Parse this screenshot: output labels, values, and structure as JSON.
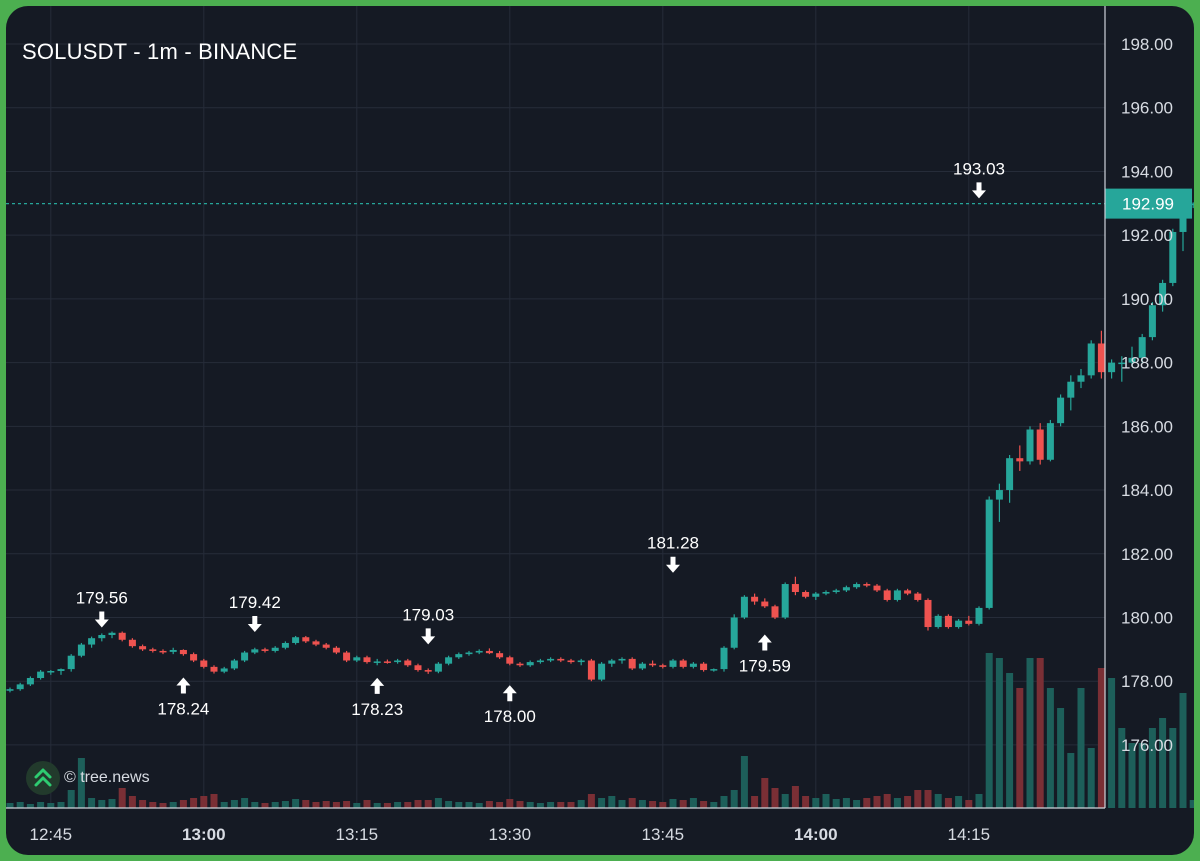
{
  "title": "SOLUSDT - 1m - BINANCE",
  "watermark": "© tree.news",
  "colors": {
    "background": "#151a24",
    "grid": "#262c39",
    "up": "#26a69a",
    "down": "#ef5350",
    "vol_up": "#1d5f5a",
    "vol_down": "#7a2f35",
    "text": "#ffffff",
    "axis_text": "#d7dbe2",
    "price_line": "#26a69a",
    "frame": "#4caf50"
  },
  "chart_data": {
    "type": "candlestick",
    "symbol": "SOLUSDT",
    "interval": "1m",
    "exchange": "BINANCE",
    "start_time": "12:41",
    "ylim": [
      174.0,
      199.0
    ],
    "y_ticks": [
      "198.00",
      "196.00",
      "194.00",
      "192.00",
      "190.00",
      "188.00",
      "186.00",
      "184.00",
      "182.00",
      "180.00",
      "178.00",
      "176.00"
    ],
    "x_ticks": [
      {
        "label": "12:45",
        "bold": false
      },
      {
        "label": "13:00",
        "bold": true
      },
      {
        "label": "13:15",
        "bold": false
      },
      {
        "label": "13:30",
        "bold": false
      },
      {
        "label": "13:45",
        "bold": false
      },
      {
        "label": "14:00",
        "bold": true
      },
      {
        "label": "14:15",
        "bold": false
      }
    ],
    "last_price": "192.99",
    "last_price_value": 192.99,
    "annotations": [
      {
        "label": "179.56",
        "type": "high",
        "value": 179.56,
        "time": "12:50"
      },
      {
        "label": "178.24",
        "type": "low",
        "value": 178.24,
        "time": "12:58"
      },
      {
        "label": "179.42",
        "type": "high",
        "value": 179.42,
        "time": "13:05"
      },
      {
        "label": "178.23",
        "type": "low",
        "value": 178.23,
        "time": "13:17"
      },
      {
        "label": "179.03",
        "type": "high",
        "value": 179.03,
        "time": "13:22"
      },
      {
        "label": "178.00",
        "type": "low",
        "value": 178.0,
        "time": "13:30"
      },
      {
        "label": "181.28",
        "type": "high",
        "value": 181.28,
        "time": "13:46"
      },
      {
        "label": "179.59",
        "type": "low",
        "value": 179.59,
        "time": "13:55"
      },
      {
        "label": "193.03",
        "type": "high",
        "value": 193.03,
        "time": "14:16"
      }
    ],
    "candles": [
      [
        177.7,
        177.8,
        177.65,
        177.75,
        5
      ],
      [
        177.75,
        177.95,
        177.7,
        177.9,
        6
      ],
      [
        177.9,
        178.15,
        177.85,
        178.1,
        4
      ],
      [
        178.1,
        178.35,
        178.05,
        178.3,
        6
      ],
      [
        178.3,
        178.35,
        178.2,
        178.32,
        5
      ],
      [
        178.32,
        178.4,
        178.2,
        178.38,
        6
      ],
      [
        178.38,
        178.85,
        178.3,
        178.8,
        18
      ],
      [
        178.8,
        179.2,
        178.75,
        179.15,
        50
      ],
      [
        179.15,
        179.4,
        179.05,
        179.35,
        10
      ],
      [
        179.35,
        179.5,
        179.25,
        179.45,
        8
      ],
      [
        179.45,
        179.56,
        179.35,
        179.52,
        9
      ],
      [
        179.52,
        179.56,
        179.25,
        179.3,
        20
      ],
      [
        179.3,
        179.35,
        179.05,
        179.1,
        12
      ],
      [
        179.1,
        179.15,
        178.95,
        179.0,
        8
      ],
      [
        179.0,
        179.05,
        178.9,
        178.95,
        6
      ],
      [
        178.95,
        179.0,
        178.85,
        178.92,
        5
      ],
      [
        178.92,
        179.05,
        178.85,
        178.98,
        6
      ],
      [
        178.98,
        179.0,
        178.8,
        178.85,
        8
      ],
      [
        178.85,
        178.9,
        178.6,
        178.65,
        10
      ],
      [
        178.65,
        178.7,
        178.4,
        178.45,
        12
      ],
      [
        178.45,
        178.5,
        178.24,
        178.3,
        14
      ],
      [
        178.3,
        178.45,
        178.25,
        178.4,
        6
      ],
      [
        178.4,
        178.7,
        178.35,
        178.65,
        8
      ],
      [
        178.65,
        178.95,
        178.6,
        178.9,
        10
      ],
      [
        178.9,
        179.05,
        178.85,
        179.0,
        6
      ],
      [
        179.0,
        179.05,
        178.9,
        178.95,
        5
      ],
      [
        178.95,
        179.1,
        178.9,
        179.05,
        6
      ],
      [
        179.05,
        179.25,
        179.0,
        179.2,
        7
      ],
      [
        179.2,
        179.42,
        179.15,
        179.38,
        9
      ],
      [
        179.38,
        179.42,
        179.2,
        179.25,
        8
      ],
      [
        179.25,
        179.3,
        179.1,
        179.15,
        6
      ],
      [
        179.15,
        179.2,
        179.0,
        179.05,
        7
      ],
      [
        179.05,
        179.1,
        178.85,
        178.9,
        6
      ],
      [
        178.9,
        178.95,
        178.6,
        178.65,
        7
      ],
      [
        178.65,
        178.8,
        178.6,
        178.75,
        5
      ],
      [
        178.75,
        178.8,
        178.55,
        178.6,
        8
      ],
      [
        178.6,
        178.7,
        178.5,
        178.62,
        5
      ],
      [
        178.62,
        178.68,
        178.55,
        178.6,
        5
      ],
      [
        178.6,
        178.7,
        178.55,
        178.65,
        6
      ],
      [
        178.65,
        178.7,
        178.45,
        178.5,
        6
      ],
      [
        178.5,
        178.55,
        178.3,
        178.35,
        8
      ],
      [
        178.35,
        178.4,
        178.23,
        178.3,
        8
      ],
      [
        178.3,
        178.6,
        178.25,
        178.55,
        10
      ],
      [
        178.55,
        178.8,
        178.5,
        178.75,
        7
      ],
      [
        178.75,
        178.9,
        178.7,
        178.85,
        6
      ],
      [
        178.85,
        178.95,
        178.8,
        178.9,
        6
      ],
      [
        178.9,
        179.0,
        178.85,
        178.95,
        5
      ],
      [
        178.95,
        179.03,
        178.85,
        178.88,
        7
      ],
      [
        178.88,
        178.95,
        178.7,
        178.75,
        6
      ],
      [
        178.75,
        178.8,
        178.5,
        178.55,
        9
      ],
      [
        178.55,
        178.6,
        178.45,
        178.5,
        7
      ],
      [
        178.5,
        178.65,
        178.45,
        178.6,
        6
      ],
      [
        178.6,
        178.7,
        178.55,
        178.65,
        5
      ],
      [
        178.65,
        178.75,
        178.6,
        178.7,
        6
      ],
      [
        178.7,
        178.75,
        178.6,
        178.65,
        6
      ],
      [
        178.65,
        178.7,
        178.55,
        178.6,
        6
      ],
      [
        178.6,
        178.7,
        178.5,
        178.65,
        8
      ],
      [
        178.65,
        178.7,
        178.0,
        178.05,
        14
      ],
      [
        178.05,
        178.6,
        178.0,
        178.55,
        10
      ],
      [
        178.55,
        178.7,
        178.45,
        178.65,
        12
      ],
      [
        178.65,
        178.75,
        178.55,
        178.7,
        8
      ],
      [
        178.7,
        178.75,
        178.35,
        178.4,
        10
      ],
      [
        178.4,
        178.6,
        178.35,
        178.55,
        8
      ],
      [
        178.55,
        178.65,
        178.45,
        178.5,
        7
      ],
      [
        178.5,
        178.55,
        178.4,
        178.45,
        6
      ],
      [
        178.45,
        178.7,
        178.4,
        178.65,
        9
      ],
      [
        178.65,
        178.7,
        178.4,
        178.45,
        8
      ],
      [
        178.45,
        178.6,
        178.4,
        178.55,
        10
      ],
      [
        178.55,
        178.6,
        178.3,
        178.35,
        7
      ],
      [
        178.35,
        178.4,
        178.3,
        178.38,
        6
      ],
      [
        178.38,
        179.1,
        178.3,
        179.05,
        12
      ],
      [
        179.05,
        180.1,
        179.0,
        180.0,
        18
      ],
      [
        180.0,
        180.7,
        179.95,
        180.65,
        52
      ],
      [
        180.65,
        180.75,
        180.4,
        180.5,
        12
      ],
      [
        180.5,
        180.6,
        180.3,
        180.35,
        30
      ],
      [
        180.35,
        180.4,
        179.95,
        180.0,
        20
      ],
      [
        180.0,
        181.1,
        179.95,
        181.05,
        14
      ],
      [
        181.05,
        181.28,
        180.7,
        180.8,
        22
      ],
      [
        180.8,
        180.85,
        180.6,
        180.65,
        12
      ],
      [
        180.65,
        180.8,
        180.55,
        180.75,
        10
      ],
      [
        180.75,
        180.85,
        180.7,
        180.8,
        14
      ],
      [
        180.8,
        180.9,
        180.75,
        180.85,
        9
      ],
      [
        180.85,
        181.0,
        180.8,
        180.95,
        10
      ],
      [
        180.95,
        181.1,
        180.9,
        181.05,
        8
      ],
      [
        181.05,
        181.1,
        180.95,
        181.0,
        10
      ],
      [
        181.0,
        181.05,
        180.8,
        180.85,
        12
      ],
      [
        180.85,
        180.9,
        180.5,
        180.55,
        14
      ],
      [
        180.55,
        180.9,
        180.5,
        180.85,
        10
      ],
      [
        180.85,
        180.9,
        180.7,
        180.75,
        12
      ],
      [
        180.75,
        180.8,
        180.5,
        180.55,
        18
      ],
      [
        180.55,
        180.6,
        179.59,
        179.7,
        18
      ],
      [
        179.7,
        180.1,
        179.65,
        180.05,
        14
      ],
      [
        180.05,
        180.1,
        179.65,
        179.7,
        10
      ],
      [
        179.7,
        179.95,
        179.65,
        179.9,
        12
      ],
      [
        179.9,
        180.05,
        179.75,
        179.8,
        8
      ],
      [
        179.8,
        180.35,
        179.75,
        180.3,
        14
      ],
      [
        180.3,
        183.8,
        180.25,
        183.7,
        155
      ],
      [
        183.7,
        184.2,
        183.0,
        184.0,
        150
      ],
      [
        184.0,
        185.1,
        183.6,
        185.0,
        135
      ],
      [
        185.0,
        185.4,
        184.6,
        184.9,
        120
      ],
      [
        184.9,
        186.0,
        184.8,
        185.9,
        150
      ],
      [
        185.9,
        186.1,
        184.8,
        184.95,
        150
      ],
      [
        184.95,
        186.2,
        184.9,
        186.1,
        120
      ],
      [
        186.1,
        187.0,
        186.0,
        186.9,
        100
      ],
      [
        186.9,
        187.6,
        186.5,
        187.4,
        55
      ],
      [
        187.4,
        187.8,
        187.2,
        187.6,
        120
      ],
      [
        187.6,
        188.7,
        187.5,
        188.6,
        60
      ],
      [
        188.6,
        189.0,
        187.5,
        187.7,
        140
      ],
      [
        187.7,
        188.1,
        187.5,
        188.0,
        130
      ],
      [
        188.0,
        188.2,
        187.4,
        188.0,
        80
      ],
      [
        188.0,
        188.5,
        187.9,
        188.15,
        65
      ],
      [
        188.15,
        188.9,
        188.0,
        188.8,
        65
      ],
      [
        188.8,
        189.9,
        188.7,
        189.8,
        80
      ],
      [
        189.8,
        190.6,
        189.6,
        190.5,
        90
      ],
      [
        190.5,
        192.2,
        190.4,
        192.1,
        80
      ],
      [
        192.1,
        193.03,
        191.5,
        192.95,
        115
      ],
      [
        192.95,
        193.03,
        192.85,
        192.99,
        8
      ]
    ]
  }
}
